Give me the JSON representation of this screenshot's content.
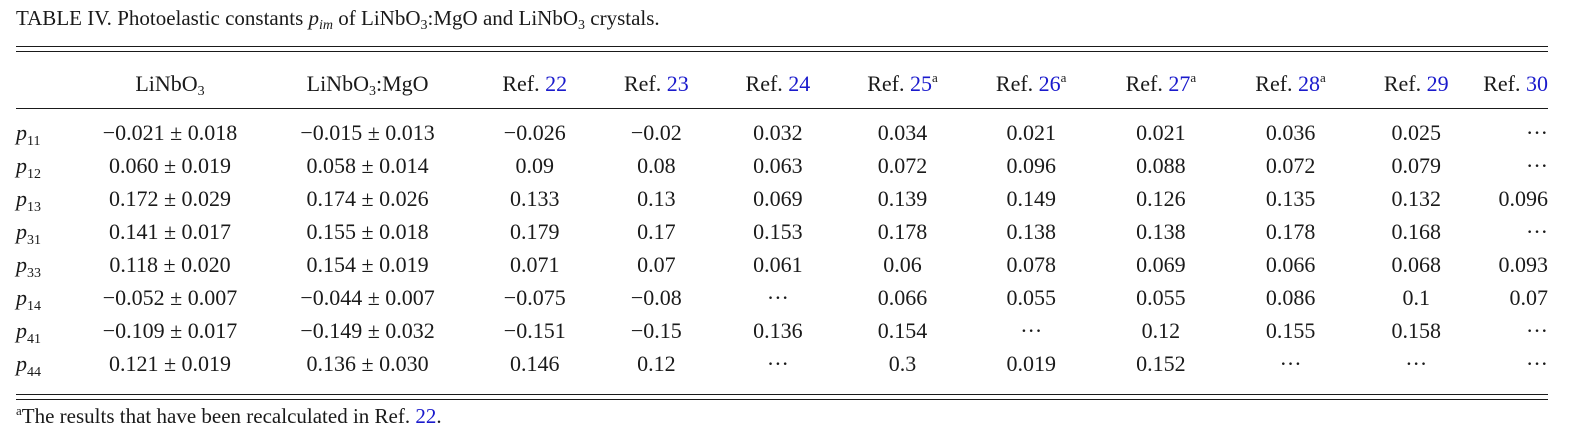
{
  "caption": {
    "table_label": "TABLE IV.",
    "text_before": "Photoelastic constants",
    "symbol_base": "p",
    "symbol_sub": "im",
    "text_of": "of",
    "crystal_a_base": "LiNbO",
    "crystal_a_sub": "3",
    "crystal_a_suffix": ":MgO",
    "text_and": "and",
    "crystal_b_base": "LiNbO",
    "crystal_b_sub": "3",
    "text_end": "crystals."
  },
  "columns": {
    "col1": {
      "base": "LiNbO",
      "sub": "3"
    },
    "col2": {
      "base": "LiNbO",
      "sub": "3",
      "suffix": ":MgO"
    },
    "refs": [
      {
        "prefix": "Ref.",
        "num": "22",
        "mark": ""
      },
      {
        "prefix": "Ref.",
        "num": "23",
        "mark": ""
      },
      {
        "prefix": "Ref.",
        "num": "24",
        "mark": ""
      },
      {
        "prefix": "Ref.",
        "num": "25",
        "mark": "a"
      },
      {
        "prefix": "Ref.",
        "num": "26",
        "mark": "a"
      },
      {
        "prefix": "Ref.",
        "num": "27",
        "mark": "a"
      },
      {
        "prefix": "Ref.",
        "num": "28",
        "mark": "a"
      },
      {
        "prefix": "Ref.",
        "num": "29",
        "mark": ""
      },
      {
        "prefix": "Ref.",
        "num": "30",
        "mark": ""
      }
    ]
  },
  "rows": [
    {
      "p": "p",
      "sub": "11",
      "v1": "−0.021 ± 0.018",
      "v2": "−0.015 ± 0.013",
      "refs": [
        "−0.026",
        "−0.02",
        "0.032",
        "0.034",
        "0.021",
        "0.021",
        "0.036",
        "0.025",
        "···"
      ]
    },
    {
      "p": "p",
      "sub": "12",
      "v1": "0.060 ± 0.019",
      "v2": "0.058 ± 0.014",
      "refs": [
        "0.09",
        "0.08",
        "0.063",
        "0.072",
        "0.096",
        "0.088",
        "0.072",
        "0.079",
        "···"
      ]
    },
    {
      "p": "p",
      "sub": "13",
      "v1": "0.172 ± 0.029",
      "v2": "0.174 ± 0.026",
      "refs": [
        "0.133",
        "0.13",
        "0.069",
        "0.139",
        "0.149",
        "0.126",
        "0.135",
        "0.132",
        "0.096"
      ]
    },
    {
      "p": "p",
      "sub": "31",
      "v1": "0.141 ± 0.017",
      "v2": "0.155 ± 0.018",
      "refs": [
        "0.179",
        "0.17",
        "0.153",
        "0.178",
        "0.138",
        "0.138",
        "0.178",
        "0.168",
        "···"
      ]
    },
    {
      "p": "p",
      "sub": "33",
      "v1": "0.118 ± 0.020",
      "v2": "0.154 ± 0.019",
      "refs": [
        "0.071",
        "0.07",
        "0.061",
        "0.06",
        "0.078",
        "0.069",
        "0.066",
        "0.068",
        "0.093"
      ]
    },
    {
      "p": "p",
      "sub": "14",
      "v1": "−0.052 ± 0.007",
      "v2": "−0.044 ± 0.007",
      "refs": [
        "−0.075",
        "−0.08",
        "···",
        "0.066",
        "0.055",
        "0.055",
        "0.086",
        "0.1",
        "0.07"
      ]
    },
    {
      "p": "p",
      "sub": "41",
      "v1": "−0.109 ± 0.017",
      "v2": "−0.149 ± 0.032",
      "refs": [
        "−0.151",
        "−0.15",
        "0.136",
        "0.154",
        "···",
        "0.12",
        "0.155",
        "0.158",
        "···"
      ]
    },
    {
      "p": "p",
      "sub": "44",
      "v1": "0.121 ± 0.019",
      "v2": "0.136 ± 0.030",
      "refs": [
        "0.146",
        "0.12",
        "···",
        "0.3",
        "0.019",
        "0.152",
        "···",
        "···",
        "···"
      ]
    }
  ],
  "footnote": {
    "mark": "a",
    "text": "The results that have been recalculated in Ref.",
    "ref_num": "22",
    "end": "."
  },
  "colors": {
    "text": "#1a1a1a",
    "link": "#1a1acc"
  }
}
